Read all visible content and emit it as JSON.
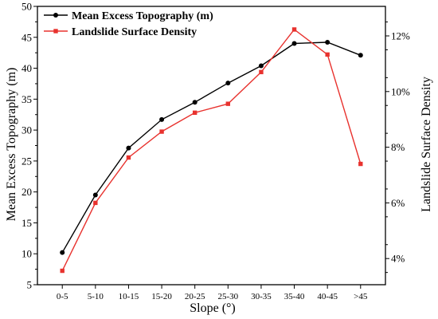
{
  "chart_data": {
    "type": "line",
    "categories": [
      "0-5",
      "5-10",
      "10-15",
      "15-20",
      "20-25",
      "25-30",
      "30-35",
      "35-40",
      "40-45",
      ">45"
    ],
    "xlabel": "Slope (°)",
    "ylabel_left": "Mean Excess Topography (m)",
    "ylabel_right": "Landslide Surface Density",
    "ylim_left": [
      5,
      50
    ],
    "yticks_left": [
      "5",
      "10",
      "15",
      "20",
      "25",
      "30",
      "35",
      "40",
      "45",
      "50"
    ],
    "ylim_right": [
      3.06,
      13.06
    ],
    "yticks_right_values": [
      4,
      6,
      8,
      10,
      12
    ],
    "yticks_right": [
      "4%",
      "6%",
      "8%",
      "10%",
      "12%"
    ],
    "grid": false,
    "legend_position": "top-left",
    "series": [
      {
        "name": "Mean Excess Topography (m)",
        "axis": "left",
        "color": "#000000",
        "marker": "circle",
        "values": [
          10.2,
          19.5,
          27.1,
          31.7,
          34.5,
          37.6,
          40.4,
          44.0,
          44.2,
          42.1
        ]
      },
      {
        "name": "Landslide Surface Density",
        "axis": "right",
        "color": "#e8322e",
        "marker": "square",
        "values": [
          3.56,
          6.0,
          7.63,
          8.56,
          9.24,
          9.56,
          10.7,
          12.23,
          11.33,
          7.4
        ]
      }
    ]
  }
}
